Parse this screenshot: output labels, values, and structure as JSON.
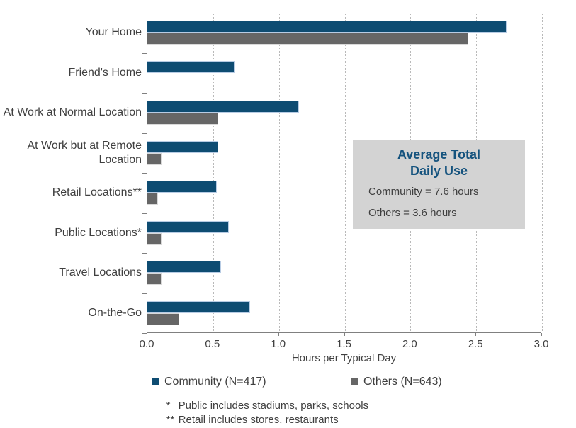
{
  "chart_data": {
    "type": "bar",
    "orientation": "horizontal",
    "title": "",
    "xlabel": "Hours per Typical Day",
    "ylabel": "",
    "xlim": [
      0.0,
      3.0
    ],
    "xticks": [
      "0.0",
      "0.5",
      "1.0",
      "1.5",
      "2.0",
      "2.5",
      "3.0"
    ],
    "xtick_values": [
      0.0,
      0.5,
      1.0,
      1.5,
      2.0,
      2.5,
      3.0
    ],
    "grid": "vertical dotted gridlines at every 0.5",
    "legend_position": "bottom",
    "categories": [
      "Your Home",
      "Friend's Home",
      "At Work at Normal Location",
      "At Work but at Remote Location",
      "Retail Locations**",
      "Public Locations*",
      "Travel Locations",
      "On-the-Go"
    ],
    "series": [
      {
        "name": "Community (N=417)",
        "color": "#0e4c72",
        "values": [
          2.73,
          0.66,
          1.15,
          0.54,
          0.53,
          0.62,
          0.56,
          0.78
        ]
      },
      {
        "name": "Others (N=643)",
        "color": "#666666",
        "values": [
          2.44,
          0,
          0.54,
          0.11,
          0.08,
          0.11,
          0.11,
          0.24
        ]
      }
    ],
    "annotation": {
      "title_lines": [
        "Average Total",
        "Daily Use"
      ],
      "title_color": "#15537e",
      "background": "#d3d3d3",
      "lines": [
        "Community  = 7.6 hours",
        "Others  = 3.6 hours"
      ]
    },
    "footnotes": [
      {
        "marker": "*",
        "text": "Public includes stadiums, parks, schools"
      },
      {
        "marker": "**",
        "text": "Retail includes stores, restaurants"
      }
    ]
  },
  "colors": {
    "axis": "#808080",
    "gridline": "#b9b9b9",
    "text": "#3f3f3f",
    "community_bar": "#0e4c72",
    "others_bar": "#666666",
    "annotation_bg": "#d3d3d3",
    "annotation_title": "#15537e"
  }
}
